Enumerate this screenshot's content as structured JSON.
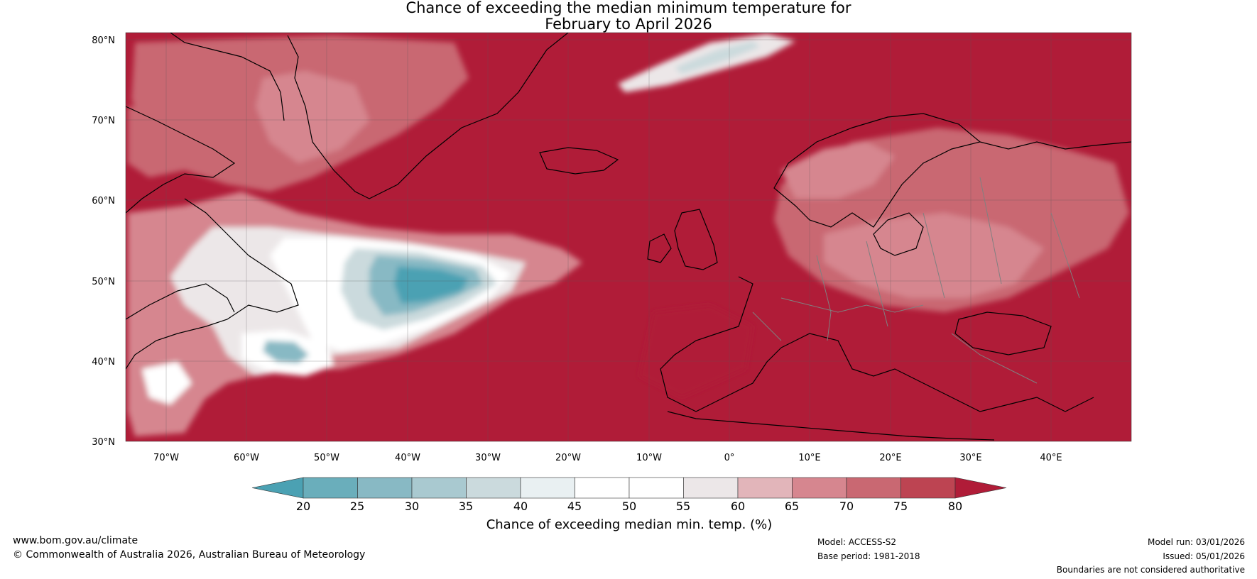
{
  "title": {
    "line1": "Chance of exceeding the median minimum temperature for",
    "line2": "February to April 2026"
  },
  "map": {
    "lat_ticks": [
      "80°N",
      "70°N",
      "60°N",
      "50°N",
      "40°N",
      "30°N"
    ],
    "lon_ticks": [
      "70°W",
      "60°W",
      "50°W",
      "40°W",
      "30°W",
      "20°W",
      "10°W",
      "0°",
      "10°E",
      "20°E",
      "30°E",
      "40°E"
    ],
    "lat_range": [
      30,
      80
    ],
    "lon_range": [
      -75,
      50
    ]
  },
  "colorbar": {
    "label": "Chance of exceeding median min. temp. (%)",
    "ticks": [
      "20",
      "25",
      "30",
      "35",
      "40",
      "45",
      "50",
      "55",
      "60",
      "65",
      "70",
      "75",
      "80"
    ],
    "colors": [
      "#4ba1b3",
      "#6aaebb",
      "#88b9c4",
      "#a9c9d0",
      "#cbdadd",
      "#e9f0f2",
      "#ffffff",
      "#ffffff",
      "#ece7e8",
      "#e2b5ba",
      "#d6868f",
      "#c96872",
      "#bd4452",
      "#b01c38"
    ]
  },
  "footer": {
    "website": "www.bom.gov.au/climate",
    "copyright": "© Commonwealth of Australia 2026, Australian Bureau of Meteorology",
    "model": "Model: ACCESS-S2",
    "base_period": "Base period: 1981-2018",
    "model_run": "Model run: 03/01/2026",
    "issued": "Issued: 05/01/2026",
    "disclaimer": "Boundaries are not considered authoritative"
  }
}
